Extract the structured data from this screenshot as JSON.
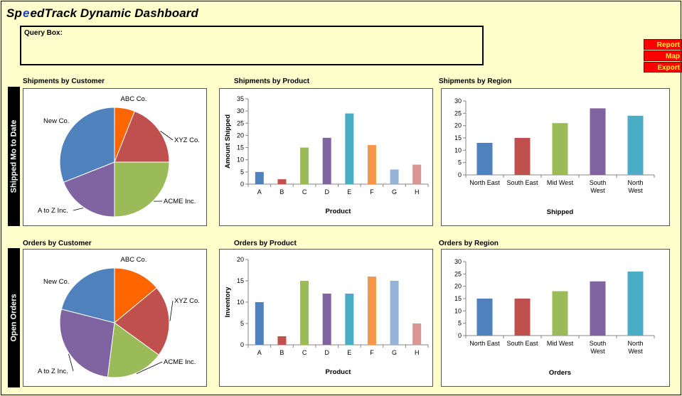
{
  "app": {
    "title_part1": "Sp",
    "title_part2": "e",
    "title_part3": "edTrack Dynamic Dashboard"
  },
  "query_box": {
    "label": "Query Box:",
    "value": ""
  },
  "buttons": {
    "report": "Report",
    "map": "Map",
    "export": "Export"
  },
  "sections": {
    "shipped": "Shipped Mo to Date",
    "open": "Open Orders"
  },
  "colors": {
    "blue": "#4F81BD",
    "red": "#C0504D",
    "green": "#9BBB59",
    "purple": "#8064A2",
    "teal": "#4BACC6",
    "orange": "#F79646",
    "lightblue": "#95B3D7",
    "pink": "#D99694",
    "pie_orange": "#FF6600"
  },
  "chart_titles": {
    "ship_customer": "Shipments by Customer",
    "ship_product": "Shipments by Product",
    "ship_region": "Shipments by Region",
    "ord_customer": "Orders by Customer",
    "ord_product": "Orders by Product",
    "ord_region": "Orders by Region"
  },
  "chart_data": [
    {
      "id": "ship_customer",
      "type": "pie",
      "labels": [
        "ABC Co.",
        "XYZ Co.",
        "ACME Inc.",
        "A to Z Inc.",
        "New Co."
      ],
      "values": [
        6,
        19,
        25,
        19,
        31
      ],
      "colors": [
        "#FF6600",
        "#C0504D",
        "#9BBB59",
        "#8064A2",
        "#4F81BD"
      ]
    },
    {
      "id": "ship_product",
      "type": "bar",
      "categories": [
        "A",
        "B",
        "C",
        "D",
        "E",
        "F",
        "G",
        "H"
      ],
      "values": [
        5,
        2,
        15,
        19,
        29,
        16,
        6,
        8
      ],
      "colors": [
        "#4F81BD",
        "#C0504D",
        "#9BBB59",
        "#8064A2",
        "#4BACC6",
        "#F79646",
        "#95B3D7",
        "#D99694"
      ],
      "ylim": [
        0,
        35
      ],
      "yticks": [
        "0",
        "5",
        "10",
        "15",
        "20",
        "25",
        "30",
        "35"
      ],
      "xlabel": "Product",
      "ylabel": "Amount Shipped"
    },
    {
      "id": "ship_region",
      "type": "bar",
      "categories": [
        "North East",
        "South East",
        "Mid West",
        "South West",
        "North West"
      ],
      "values": [
        13,
        15,
        21,
        27,
        24
      ],
      "colors": [
        "#4F81BD",
        "#C0504D",
        "#9BBB59",
        "#8064A2",
        "#4BACC6"
      ],
      "ylim": [
        0,
        30
      ],
      "yticks": [
        "0",
        "5",
        "10",
        "15",
        "20",
        "25",
        "30"
      ],
      "xlabel": "Shipped",
      "ylabel": ""
    },
    {
      "id": "ord_customer",
      "type": "pie",
      "labels": [
        "ABC Co.",
        "XYZ Co.",
        "ACME Inc.",
        "A to Z Inc.",
        "New Co."
      ],
      "values": [
        14,
        21,
        17,
        27,
        21
      ],
      "colors": [
        "#FF6600",
        "#C0504D",
        "#9BBB59",
        "#8064A2",
        "#4F81BD"
      ]
    },
    {
      "id": "ord_product",
      "type": "bar",
      "categories": [
        "A",
        "B",
        "C",
        "D",
        "E",
        "F",
        "G",
        "H"
      ],
      "values": [
        10,
        2,
        15,
        12,
        12,
        16,
        15,
        5
      ],
      "colors": [
        "#4F81BD",
        "#C0504D",
        "#9BBB59",
        "#8064A2",
        "#4BACC6",
        "#F79646",
        "#95B3D7",
        "#D99694"
      ],
      "ylim": [
        0,
        20
      ],
      "yticks": [
        "0",
        "5",
        "10",
        "15",
        "20"
      ],
      "xlabel": "Product",
      "ylabel": "Inventory"
    },
    {
      "id": "ord_region",
      "type": "bar",
      "categories": [
        "North East",
        "South East",
        "Mid West",
        "South West",
        "North West"
      ],
      "values": [
        15,
        15,
        18,
        22,
        26
      ],
      "colors": [
        "#4F81BD",
        "#C0504D",
        "#9BBB59",
        "#8064A2",
        "#4BACC6"
      ],
      "ylim": [
        0,
        30
      ],
      "yticks": [
        "0",
        "5",
        "10",
        "15",
        "20",
        "25",
        "30"
      ],
      "xlabel": "Orders",
      "ylabel": ""
    }
  ]
}
